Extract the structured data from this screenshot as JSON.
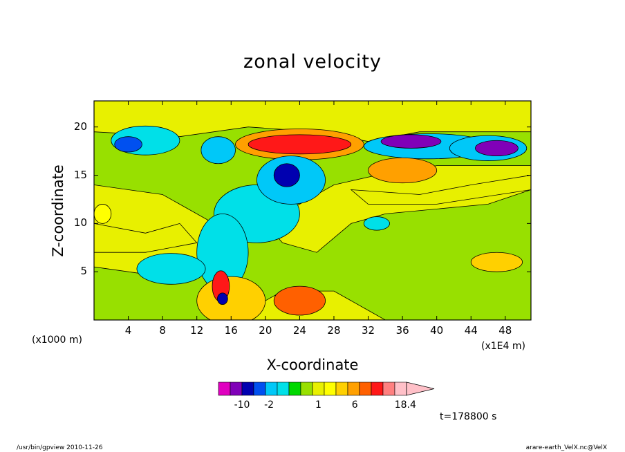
{
  "chart_data": {
    "type": "heatmap",
    "title": "zonal velocity",
    "xlabel": "X-coordinate",
    "ylabel": "Z-coordinate",
    "x_unit": "(x1E4 m)",
    "y_unit": "(x1000 m)",
    "xlim": [
      0,
      51
    ],
    "ylim": [
      0,
      22.7
    ],
    "x_ticks": [
      "4",
      "8",
      "12",
      "16",
      "20",
      "24",
      "28",
      "32",
      "36",
      "40",
      "44",
      "48"
    ],
    "y_ticks": [
      "5",
      "10",
      "15",
      "20"
    ],
    "grid": false,
    "colorbar": {
      "levels": [
        -14,
        -10,
        -6,
        -3,
        -2,
        -1,
        -0.5,
        0,
        0.5,
        1,
        2,
        3,
        4,
        6,
        10,
        14,
        18.4
      ],
      "labels": [
        "-10",
        "-2",
        "1",
        "6",
        "18.4"
      ],
      "colors": [
        "#e000c0",
        "#8000b8",
        "#0000b0",
        "#0050f0",
        "#00c8f8",
        "#00e0e8",
        "#00d800",
        "#98e000",
        "#e8f000",
        "#ffff00",
        "#ffd000",
        "#ffa000",
        "#ff6000",
        "#ff1818",
        "#ff8080",
        "#ffc0c8"
      ]
    },
    "regions": [
      {
        "value": -2.5,
        "x": 4,
        "z": 18.2,
        "rx": 1.6,
        "rz": 0.8
      },
      {
        "value": -1,
        "x": 6,
        "z": 18.6,
        "rx": 4,
        "rz": 1.5
      },
      {
        "value": -1.5,
        "x": 14.5,
        "z": 17.6,
        "rx": 2,
        "rz": 1.4
      },
      {
        "value": 8,
        "x": 24,
        "z": 18.2,
        "rx": 6,
        "rz": 1
      },
      {
        "value": 3,
        "x": 24,
        "z": 18.2,
        "rx": 7.5,
        "rz": 1.6
      },
      {
        "value": -5,
        "x": 22.5,
        "z": 15,
        "rx": 1.5,
        "rz": 1.2
      },
      {
        "value": -1.5,
        "x": 23,
        "z": 14.5,
        "rx": 4,
        "rz": 2.5
      },
      {
        "value": -1,
        "x": 19,
        "z": 11,
        "rx": 5,
        "rz": 3
      },
      {
        "value": -1,
        "x": 9,
        "z": 5.3,
        "rx": 4,
        "rz": 1.6
      },
      {
        "value": -1,
        "x": 15,
        "z": 7,
        "rx": 3,
        "rz": 4
      },
      {
        "value": -7,
        "x": 37,
        "z": 18.5,
        "rx": 3.5,
        "rz": 0.7
      },
      {
        "value": -2,
        "x": 39,
        "z": 18,
        "rx": 7.5,
        "rz": 1.3
      },
      {
        "value": -8,
        "x": 47,
        "z": 17.8,
        "rx": 2.5,
        "rz": 0.8
      },
      {
        "value": -2,
        "x": 46,
        "z": 17.8,
        "rx": 4.5,
        "rz": 1.3
      },
      {
        "value": 3,
        "x": 36,
        "z": 15.5,
        "rx": 4,
        "rz": 1.3
      },
      {
        "value": 2,
        "x": 47,
        "z": 6,
        "rx": 3,
        "rz": 1
      },
      {
        "value": 2,
        "x": 16,
        "z": 2,
        "rx": 4,
        "rz": 2.5
      },
      {
        "value": 4,
        "x": 24,
        "z": 2,
        "rx": 3,
        "rz": 1.5
      },
      {
        "value": 8,
        "x": 14.8,
        "z": 3.5,
        "rx": 1,
        "rz": 1.6
      },
      {
        "value": -6,
        "x": 15,
        "z": 2.2,
        "rx": 0.6,
        "rz": 0.6
      },
      {
        "value": 1,
        "x": 1,
        "z": 11,
        "rx": 1,
        "rz": 1
      },
      {
        "value": -1,
        "x": 33,
        "z": 10,
        "rx": 1.5,
        "rz": 0.7
      }
    ],
    "time_label": "t=178800 s"
  },
  "footer": {
    "left": "/usr/bin/gpview 2010-11-26",
    "right": "arare-earth_VelX.nc@VelX"
  }
}
